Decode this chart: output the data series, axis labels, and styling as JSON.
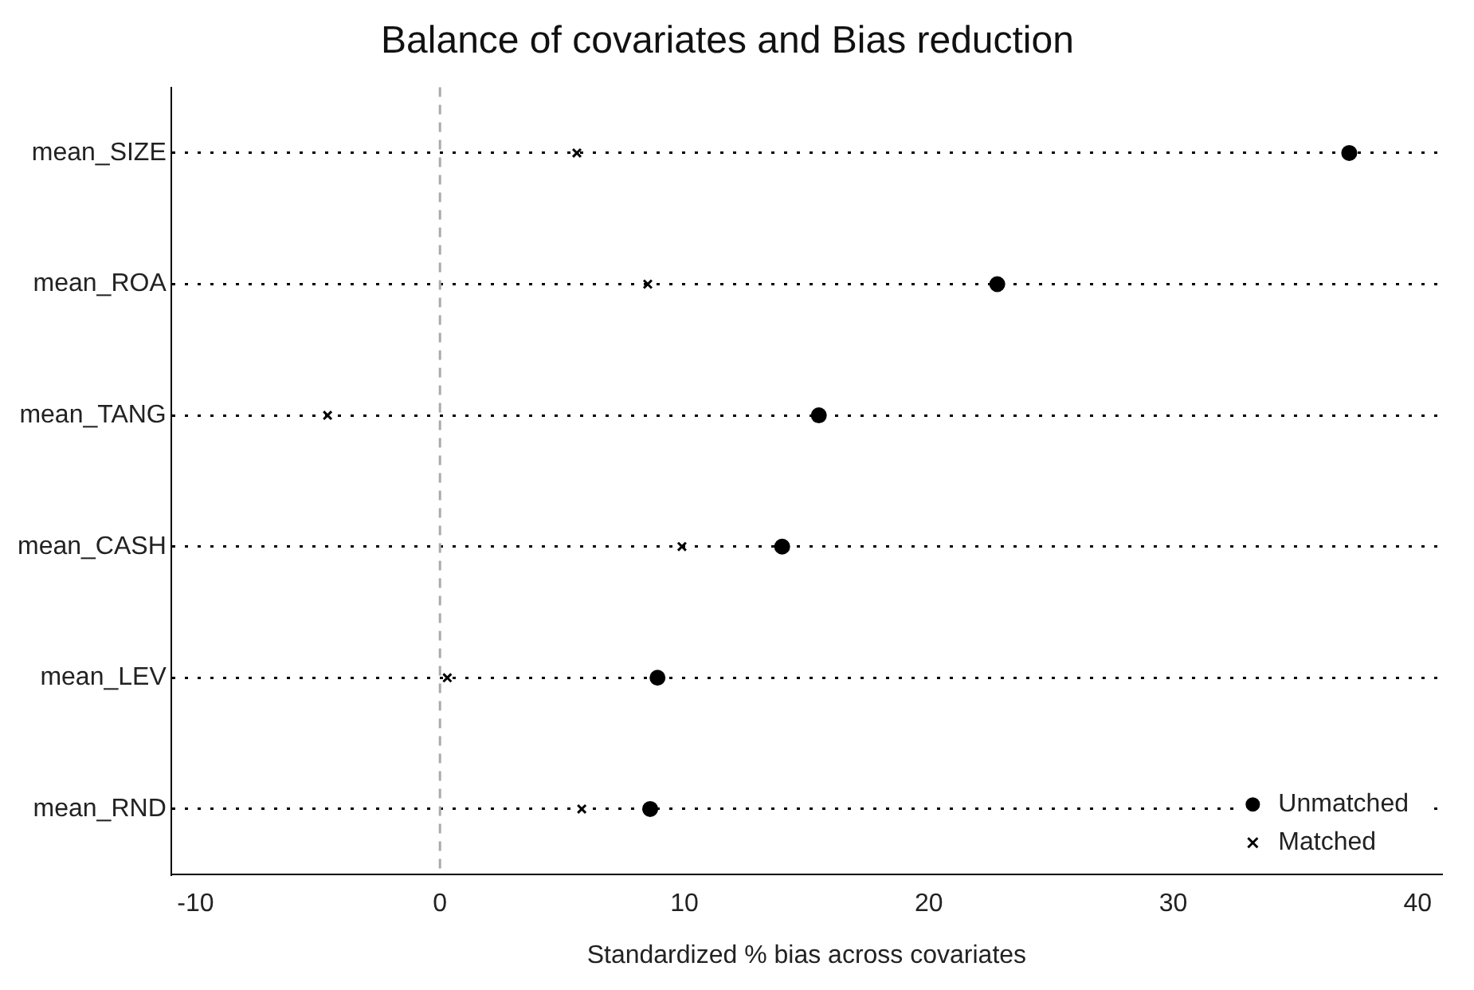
{
  "chart_data": {
    "type": "scatter",
    "title": "Balance of covariates and Bias reduction",
    "xlabel": "Standardized % bias across covariates",
    "categories": [
      "mean_SIZE",
      "mean_ROA",
      "mean_TANG",
      "mean_CASH",
      "mean_LEV",
      "mean_RND"
    ],
    "series": [
      {
        "name": "Unmatched",
        "color": "#000000",
        "marker": "circle",
        "values": [
          37.2,
          22.8,
          15.5,
          14.0,
          8.9,
          8.6
        ]
      },
      {
        "name": "Matched",
        "color": "#000000",
        "marker": "cross",
        "values": [
          5.6,
          8.5,
          -4.6,
          9.9,
          0.3,
          5.8
        ]
      }
    ],
    "orientation": "horizontal",
    "xlim": [
      -11,
      41
    ],
    "xticks": [
      -10,
      0,
      10,
      20,
      30,
      40
    ],
    "ref_lines": [
      {
        "axis": "x",
        "value": 0,
        "color": "#aaaaaa",
        "line_style": "dashed"
      }
    ],
    "grid": "y",
    "legend": "bottom right"
  }
}
